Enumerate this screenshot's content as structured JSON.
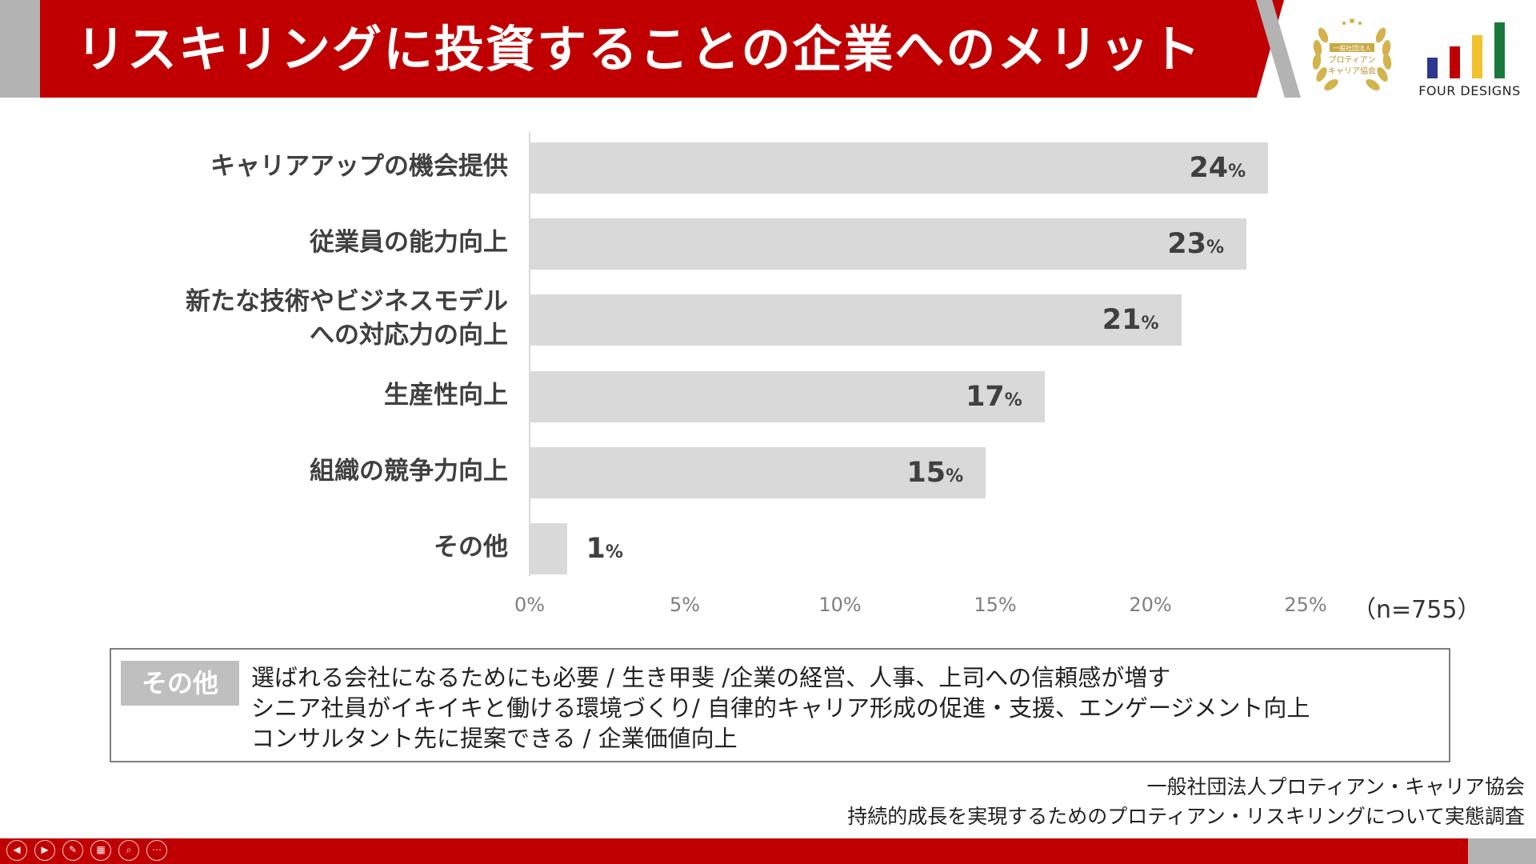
{
  "header": {
    "title": "リスキリングに投資することの企業へのメリット",
    "badge_lines": [
      "一般社団法人",
      "プロティアン",
      "キャリア協会"
    ],
    "logo_text": "FOUR DESIGNS",
    "logo_bar_colors": [
      "#2b3990",
      "#c00000",
      "#f2c12e",
      "#1a7a3c"
    ]
  },
  "chart_data": {
    "type": "bar",
    "orientation": "horizontal",
    "categories": [
      [
        "キャリアアップの機会提供"
      ],
      [
        "従業員の能力向上"
      ],
      [
        "新たな技術やビジネスモデル",
        "への対応力の向上"
      ],
      [
        "生産性向上"
      ],
      [
        "組織の競争力向上"
      ],
      [
        "その他"
      ]
    ],
    "values": [
      23.8,
      23.1,
      21.0,
      16.6,
      14.7,
      1.2
    ],
    "value_labels": [
      "24",
      "23",
      "21",
      "17",
      "15",
      "1"
    ],
    "value_suffix": "%",
    "xlim": [
      0,
      25
    ],
    "xticks": [
      "0%",
      "5%",
      "10%",
      "15%",
      "20%",
      "25%"
    ],
    "bar_color": "#d9d9d9",
    "note": "（n=755）"
  },
  "other_box": {
    "tag": "その他",
    "lines": [
      "選ばれる会社になるためにも必要 / 生き甲斐 /企業の経営、人事、上司への信頼感が増す",
      "シニア社員がイキイキと働ける環境づくり/ 自律的キャリア形成の促進・支援、エンゲージメント向上",
      "コンサルタント先に提案できる / 企業価値向上"
    ]
  },
  "source": {
    "line1": "一般社団法人プロティアン・キャリア協会",
    "line2": "持続的成長を実現するためのプロティアン・リスキリングについて実態調査"
  },
  "footer": {
    "controls": [
      "previous-icon",
      "next-icon",
      "pen-icon",
      "slides-icon",
      "zoom-icon",
      "more-icon"
    ]
  }
}
